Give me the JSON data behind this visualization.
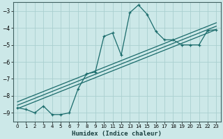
{
  "xlabel": "Humidex (Indice chaleur)",
  "ylabel": "",
  "bg_color": "#cce8e8",
  "grid_color": "#aacfcf",
  "line_color": "#1a6b6b",
  "xlim": [
    -0.5,
    23.5
  ],
  "ylim": [
    -9.5,
    -2.5
  ],
  "yticks": [
    -9,
    -8,
    -7,
    -6,
    -5,
    -4,
    -3
  ],
  "xticks": [
    0,
    1,
    2,
    3,
    4,
    5,
    6,
    7,
    8,
    9,
    10,
    11,
    12,
    13,
    14,
    15,
    16,
    17,
    18,
    19,
    20,
    21,
    22,
    23
  ],
  "curve1_x": [
    0,
    1,
    2,
    3,
    4,
    5,
    6,
    7,
    8,
    9,
    10,
    11,
    12,
    13,
    14,
    15,
    16,
    17,
    18,
    19,
    20,
    21,
    22,
    23
  ],
  "curve1_y": [
    -8.7,
    -8.8,
    -9.0,
    -8.6,
    -9.1,
    -9.1,
    -9.0,
    -7.6,
    -6.7,
    -6.6,
    -4.5,
    -4.3,
    -5.6,
    -3.1,
    -2.65,
    -3.2,
    -4.2,
    -4.7,
    -4.7,
    -5.0,
    -5.0,
    -5.0,
    -4.15,
    -4.1
  ],
  "line2_x": [
    0,
    23
  ],
  "line2_y": [
    -8.75,
    -4.1
  ],
  "line3_x": [
    0,
    23
  ],
  "line3_y": [
    -8.55,
    -3.9
  ],
  "line4_x": [
    0,
    23
  ],
  "line4_y": [
    -8.35,
    -3.7
  ]
}
